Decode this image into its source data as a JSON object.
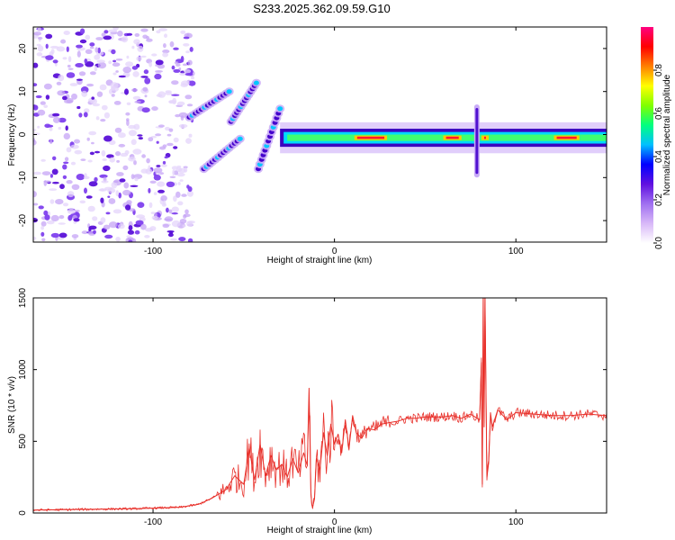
{
  "page": {
    "title": "S233.2025.362.09.59.G10"
  },
  "chart_data": [
    {
      "type": "heatmap",
      "name": "spectrogram",
      "xlabel": "Height of straight line (km)",
      "ylabel": "Frequency (Hz)",
      "xlim": [
        -166,
        150
      ],
      "ylim": [
        -25,
        25
      ],
      "xticks": [
        -100,
        0,
        100
      ],
      "yticks": [
        20,
        10,
        0,
        -10,
        -20
      ],
      "xtick_labels": [
        "-100",
        "0",
        "100"
      ],
      "ytick_labels": [
        "20",
        "10",
        "0",
        "-10",
        "-20"
      ],
      "colorbar": {
        "label": "Normalized spectral amplitude",
        "range": [
          0,
          1
        ],
        "ticks": [
          0.0,
          0.2,
          0.4,
          0.6,
          0.8
        ],
        "tick_labels": [
          "0.0",
          "0.2",
          "0.4",
          "0.6",
          "0.8"
        ],
        "colors": [
          "#ffffff",
          "#d8b8f8",
          "#a070f0",
          "#6010e0",
          "#0000ff",
          "#00c0ff",
          "#00ff80",
          "#80ff00",
          "#ffff00",
          "#ff8000",
          "#ff0000",
          "#ff0080"
        ]
      },
      "features": [
        {
          "kind": "noise",
          "x_range": [
            -166,
            -78
          ],
          "freq_range": [
            -25,
            25
          ],
          "amplitude": 0.25
        },
        {
          "kind": "streak",
          "x_range": [
            -80,
            -58
          ],
          "freq_range": [
            4,
            10
          ],
          "amplitude": 0.4
        },
        {
          "kind": "streak",
          "x_range": [
            -72,
            -52
          ],
          "freq_range": [
            -8,
            -1
          ],
          "amplitude": 0.4
        },
        {
          "kind": "streak",
          "x_range": [
            -57,
            -43
          ],
          "freq_range": [
            3,
            12
          ],
          "amplitude": 0.3
        },
        {
          "kind": "streak",
          "x_range": [
            -42,
            -30
          ],
          "freq_range": [
            -8,
            6
          ],
          "amplitude": 0.3
        },
        {
          "kind": "band",
          "x_range": [
            -30,
            150
          ],
          "freq_range": [
            -1.5,
            0
          ],
          "amplitude": 0.9
        },
        {
          "kind": "spike",
          "x_range": [
            78,
            79
          ],
          "freq_range": [
            -10,
            7
          ],
          "amplitude": 0.4
        }
      ]
    },
    {
      "type": "line",
      "name": "snr",
      "xlabel": "Height of straight line (km)",
      "ylabel": "SNR (10 * v/v)",
      "xlim": [
        -166,
        150
      ],
      "ylim": [
        0,
        1500
      ],
      "xticks": [
        -100,
        0,
        100
      ],
      "yticks": [
        0,
        500,
        1000,
        1500
      ],
      "xtick_labels": [
        "-100",
        "0",
        "100"
      ],
      "ytick_labels": [
        "0",
        "500",
        "1000",
        "1500"
      ],
      "color": "#e8302a",
      "series": [
        {
          "name": "SNR",
          "x": [
            -166,
            -140,
            -110,
            -85,
            -75,
            -68,
            -60,
            -55,
            -50,
            -47,
            -44,
            -41,
            -38,
            -35,
            -32,
            -29,
            -26,
            -23,
            -20,
            -17,
            -15,
            -14,
            -13,
            -12.5,
            -12,
            -11,
            -10,
            -8,
            -6,
            -4,
            -2,
            0,
            2,
            4,
            6,
            8,
            10,
            12,
            15,
            18,
            22,
            26,
            30,
            35,
            40,
            45,
            50,
            55,
            60,
            65,
            70,
            75,
            80,
            81,
            81.5,
            82,
            82.5,
            83,
            84,
            85,
            86,
            87,
            90,
            95,
            100,
            110,
            120,
            130,
            140,
            150
          ],
          "y": [
            20,
            25,
            30,
            40,
            60,
            100,
            160,
            260,
            200,
            450,
            230,
            480,
            260,
            400,
            300,
            340,
            250,
            380,
            280,
            420,
            330,
            870,
            150,
            60,
            40,
            100,
            380,
            300,
            560,
            400,
            620,
            480,
            550,
            420,
            650,
            450,
            680,
            560,
            520,
            590,
            580,
            620,
            630,
            640,
            660,
            660,
            670,
            670,
            670,
            680,
            660,
            690,
            650,
            1050,
            200,
            1500,
            600,
            1500,
            250,
            350,
            700,
            600,
            720,
            650,
            700,
            690,
            680,
            680,
            690,
            680
          ]
        }
      ]
    }
  ]
}
